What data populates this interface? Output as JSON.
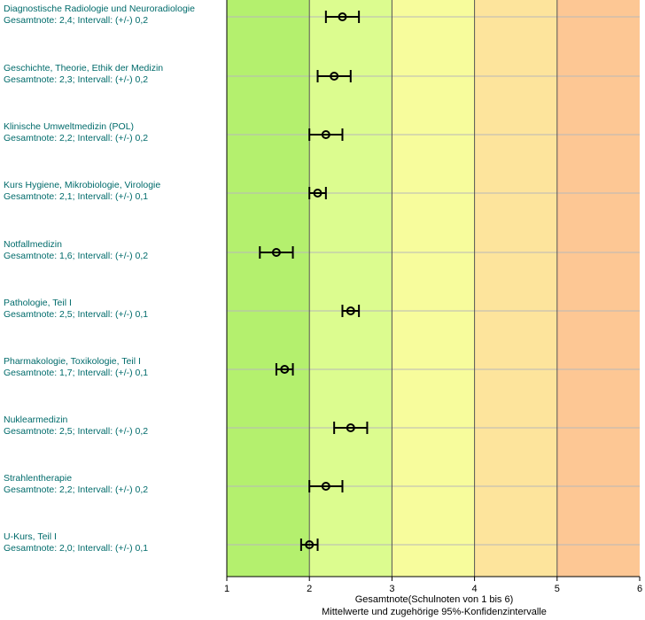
{
  "chart_data": {
    "type": "scatter",
    "xlim": [
      1,
      6
    ],
    "x_ticks": [
      "1",
      "2",
      "3",
      "4",
      "5",
      "6"
    ],
    "xlabel": "Gesamtnote(Schulnoten von 1 bis 6)",
    "xlabel_sub": "Mittelwerte und zugehörige 95%-Konfidenzintervalle",
    "grid": true,
    "zone_colors": [
      "#b4f06e",
      "#dcfc8f",
      "#f7fc9c",
      "#fde49c",
      "#fdc794"
    ],
    "items": [
      {
        "name": "Diagnostische Radiologie und Neuroradiologie",
        "detail": "Gesamtnote: 2,4;  Intervall: (+/-) 0,2",
        "mean": 2.4,
        "ci": 0.2
      },
      {
        "name": "Geschichte, Theorie, Ethik der Medizin",
        "detail": "Gesamtnote: 2,3;  Intervall: (+/-) 0,2",
        "mean": 2.3,
        "ci": 0.2
      },
      {
        "name": "Klinische Umweltmedizin (POL)",
        "detail": "Gesamtnote: 2,2;  Intervall: (+/-) 0,2",
        "mean": 2.2,
        "ci": 0.2
      },
      {
        "name": "Kurs Hygiene, Mikrobiologie, Virologie",
        "detail": "Gesamtnote: 2,1;  Intervall: (+/-) 0,1",
        "mean": 2.1,
        "ci": 0.1
      },
      {
        "name": "Notfallmedizin",
        "detail": "Gesamtnote: 1,6;  Intervall: (+/-) 0,2",
        "mean": 1.6,
        "ci": 0.2
      },
      {
        "name": "Pathologie, Teil I",
        "detail": "Gesamtnote: 2,5;  Intervall: (+/-) 0,1",
        "mean": 2.5,
        "ci": 0.1
      },
      {
        "name": "Pharmakologie, Toxikologie, Teil I",
        "detail": "Gesamtnote: 1,7;  Intervall: (+/-) 0,1",
        "mean": 1.7,
        "ci": 0.1
      },
      {
        "name": "Nuklearmedizin",
        "detail": "Gesamtnote: 2,5;  Intervall: (+/-) 0,2",
        "mean": 2.5,
        "ci": 0.2
      },
      {
        "name": "Strahlentherapie",
        "detail": "Gesamtnote: 2,2;  Intervall: (+/-) 0,2",
        "mean": 2.2,
        "ci": 0.2
      },
      {
        "name": "U-Kurs, Teil I",
        "detail": "Gesamtnote: 2,0;  Intervall: (+/-) 0,1",
        "mean": 2.0,
        "ci": 0.1
      }
    ]
  }
}
